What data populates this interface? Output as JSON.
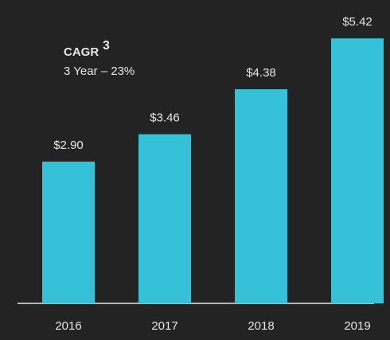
{
  "chart_data": {
    "type": "bar",
    "categories": [
      "2016",
      "2017",
      "2018",
      "2019"
    ],
    "values": [
      2.9,
      3.46,
      4.38,
      5.42
    ],
    "value_labels": [
      "$2.90",
      "$3.46",
      "$4.38",
      "$5.42"
    ],
    "color": "#35c1d7",
    "annotation": {
      "title": "CAGR",
      "superscript": "3",
      "text": "3 Year – 23%"
    }
  }
}
